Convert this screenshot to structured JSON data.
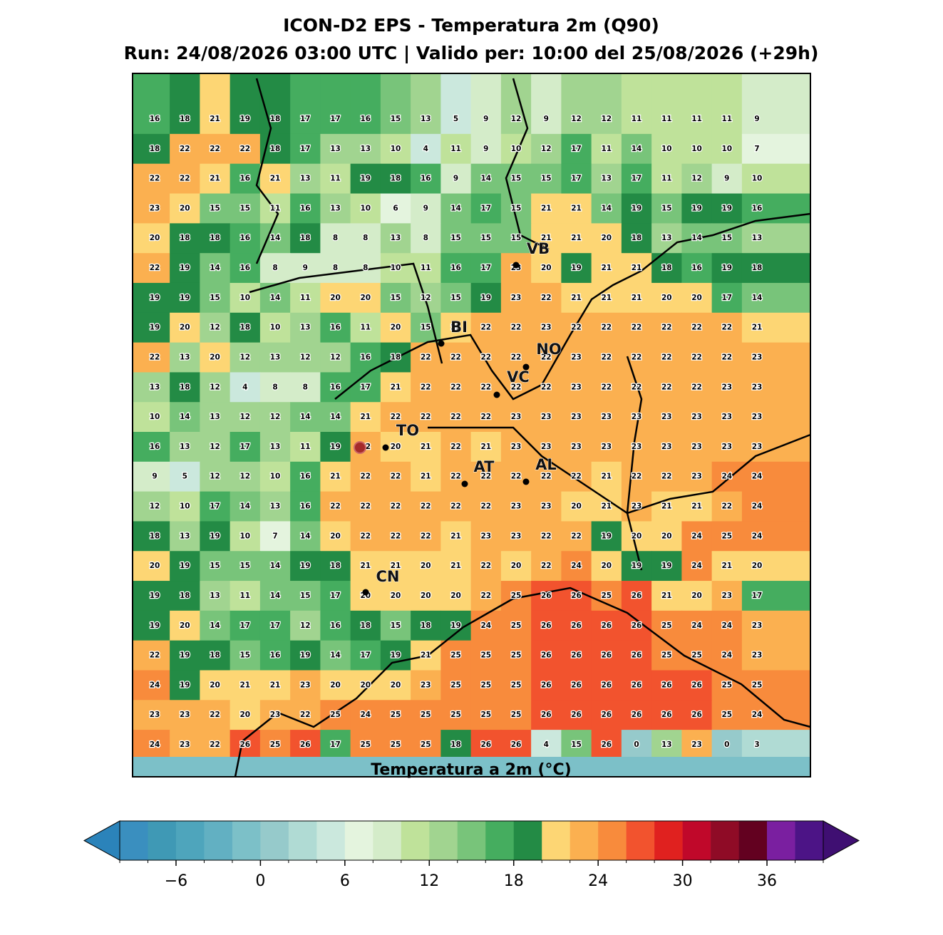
{
  "header": {
    "title": "ICON-D2 EPS - Temperatura 2m (Q90)",
    "subtitle": "Run: 24/08/2026 03:00 UTC | Valido per: 10:00 del 25/08/2026 (+29h)"
  },
  "map": {
    "grid": [
      [
        16,
        18,
        21,
        19,
        18,
        17,
        17,
        16,
        15,
        13,
        5,
        9,
        12,
        9,
        12,
        12,
        11,
        11,
        11,
        11,
        9
      ],
      [
        18,
        22,
        22,
        22,
        18,
        17,
        13,
        13,
        10,
        4,
        11,
        9,
        10,
        12,
        17,
        11,
        14,
        10,
        10,
        10,
        7
      ],
      [
        22,
        22,
        21,
        16,
        21,
        13,
        11,
        19,
        18,
        16,
        9,
        14,
        15,
        15,
        17,
        13,
        17,
        11,
        12,
        9,
        10
      ],
      [
        23,
        20,
        15,
        15,
        11,
        16,
        13,
        10,
        6,
        9,
        14,
        17,
        15,
        21,
        21,
        14,
        19,
        15,
        19,
        19,
        16
      ],
      [
        20,
        18,
        18,
        16,
        14,
        18,
        8,
        8,
        13,
        8,
        15,
        15,
        15,
        21,
        21,
        20,
        18,
        13,
        14,
        15,
        13
      ],
      [
        22,
        19,
        14,
        16,
        8,
        9,
        8,
        8,
        10,
        11,
        16,
        17,
        23,
        20,
        19,
        21,
        21,
        18,
        16,
        19,
        18
      ],
      [
        19,
        19,
        15,
        10,
        14,
        11,
        20,
        20,
        15,
        12,
        15,
        19,
        23,
        22,
        21,
        21,
        21,
        20,
        20,
        17,
        14
      ],
      [
        19,
        20,
        12,
        18,
        10,
        13,
        16,
        11,
        20,
        15,
        21,
        22,
        22,
        23,
        22,
        22,
        22,
        22,
        22,
        22,
        21
      ],
      [
        22,
        13,
        20,
        12,
        13,
        12,
        12,
        16,
        18,
        22,
        22,
        22,
        22,
        22,
        23,
        22,
        22,
        22,
        22,
        22,
        23
      ],
      [
        13,
        18,
        12,
        4,
        8,
        8,
        16,
        17,
        21,
        22,
        22,
        22,
        22,
        22,
        23,
        22,
        22,
        22,
        22,
        23,
        23
      ],
      [
        10,
        14,
        13,
        12,
        12,
        14,
        14,
        21,
        22,
        22,
        22,
        22,
        23,
        23,
        23,
        23,
        23,
        23,
        23,
        23,
        23
      ],
      [
        16,
        13,
        12,
        17,
        13,
        11,
        19,
        22,
        20,
        21,
        22,
        21,
        23,
        23,
        23,
        23,
        23,
        23,
        23,
        23,
        23
      ],
      [
        9,
        5,
        12,
        12,
        10,
        16,
        21,
        22,
        22,
        21,
        22,
        22,
        22,
        22,
        22,
        21,
        22,
        22,
        23,
        24,
        24
      ],
      [
        12,
        10,
        17,
        14,
        13,
        16,
        22,
        22,
        22,
        22,
        22,
        22,
        23,
        23,
        20,
        21,
        23,
        21,
        21,
        22,
        24
      ],
      [
        18,
        13,
        19,
        10,
        7,
        14,
        20,
        22,
        22,
        22,
        21,
        23,
        23,
        22,
        22,
        19,
        20,
        20,
        24,
        25,
        24
      ],
      [
        20,
        19,
        15,
        15,
        14,
        19,
        18,
        21,
        21,
        20,
        21,
        22,
        20,
        22,
        24,
        20,
        19,
        19,
        24,
        21,
        20
      ],
      [
        19,
        18,
        13,
        11,
        14,
        15,
        17,
        20,
        20,
        20,
        20,
        22,
        25,
        26,
        26,
        25,
        26,
        21,
        20,
        23,
        17
      ],
      [
        19,
        20,
        14,
        17,
        17,
        12,
        16,
        18,
        15,
        18,
        19,
        24,
        25,
        26,
        26,
        26,
        26,
        25,
        24,
        24,
        23
      ],
      [
        22,
        19,
        18,
        15,
        16,
        19,
        14,
        17,
        19,
        21,
        25,
        25,
        25,
        26,
        26,
        26,
        26,
        25,
        25,
        24,
        23
      ],
      [
        24,
        19,
        20,
        21,
        21,
        23,
        20,
        20,
        20,
        23,
        25,
        25,
        25,
        26,
        26,
        26,
        26,
        26,
        26,
        25,
        25
      ],
      [
        23,
        23,
        22,
        20,
        23,
        22,
        25,
        24,
        25,
        25,
        25,
        25,
        25,
        26,
        26,
        26,
        26,
        26,
        26,
        25,
        24
      ],
      [
        24,
        23,
        22,
        26,
        25,
        26,
        17,
        25,
        25,
        25,
        18,
        26,
        26,
        4,
        15,
        26,
        0,
        13,
        23,
        0,
        3
      ]
    ],
    "cities": [
      {
        "label": "VB"
      },
      {
        "label": "BI"
      },
      {
        "label": "NO"
      },
      {
        "label": "VC"
      },
      {
        "label": "TO"
      },
      {
        "label": "AT"
      },
      {
        "label": "AL"
      },
      {
        "label": "CN"
      }
    ]
  },
  "colorbar": {
    "levels": [
      -10,
      -8,
      -6,
      -4,
      -2,
      0,
      2,
      4,
      6,
      8,
      10,
      12,
      14,
      16,
      18,
      20,
      22,
      24,
      26,
      28,
      30,
      32,
      34,
      36,
      38,
      40
    ],
    "colors": [
      "#3a8fbf",
      "#3f99b5",
      "#4ea5bc",
      "#62b0c2",
      "#7cc0c8",
      "#96cacb",
      "#b0dbd4",
      "#cbe8dd",
      "#e4f4de",
      "#d4ecc9",
      "#bfe29a",
      "#a1d490",
      "#78c47a",
      "#45ad5f",
      "#238b45",
      "#fdd674",
      "#fbb050",
      "#f88b3c",
      "#f2532e",
      "#e0211f",
      "#c0082a",
      "#8f0b26",
      "#630120",
      "#7a1fa0",
      "#4c1486"
    ],
    "under_color": "#2b83ba",
    "over_color": "#3f0f72",
    "ticks": [
      {
        "value": -6,
        "label": "−6"
      },
      0,
      6,
      12,
      18,
      24,
      30,
      36
    ],
    "label": "Temperatura a 2m (°C)"
  }
}
